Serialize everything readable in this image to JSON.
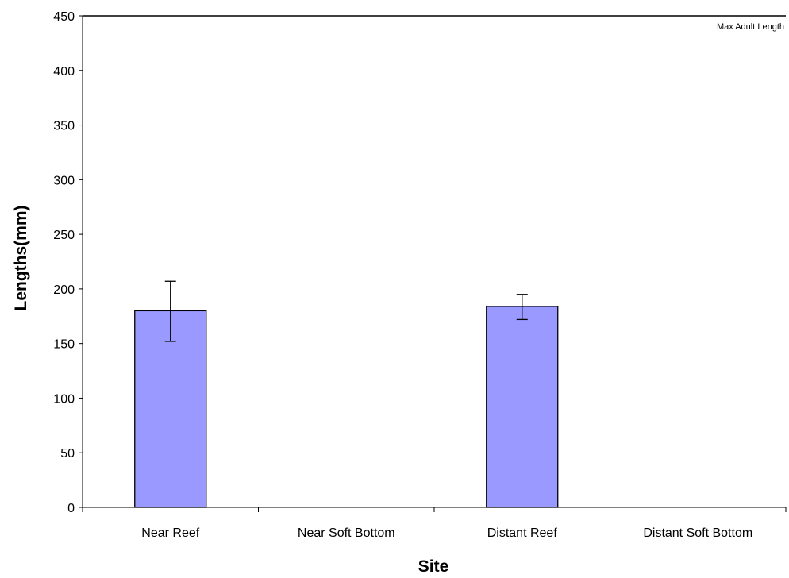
{
  "chart_data": {
    "type": "bar",
    "title": "",
    "xlabel": "Site",
    "ylabel": "Lengths(mm)",
    "categories": [
      "Near Reef",
      "Near Soft Bottom",
      "Distant Reef",
      "Distant Soft Bottom"
    ],
    "values": [
      180,
      null,
      184,
      null
    ],
    "error_low": [
      152,
      null,
      172,
      null
    ],
    "error_high": [
      207,
      null,
      195,
      null
    ],
    "ylim": [
      0,
      450
    ],
    "yticks": [
      0,
      50,
      100,
      150,
      200,
      250,
      300,
      350,
      400,
      450
    ],
    "reference_line": {
      "label": "Max Adult Length",
      "value": 450
    },
    "grid": false,
    "legend": "none",
    "bar_color": "#9999ff",
    "bar_border_color": "#000000"
  }
}
